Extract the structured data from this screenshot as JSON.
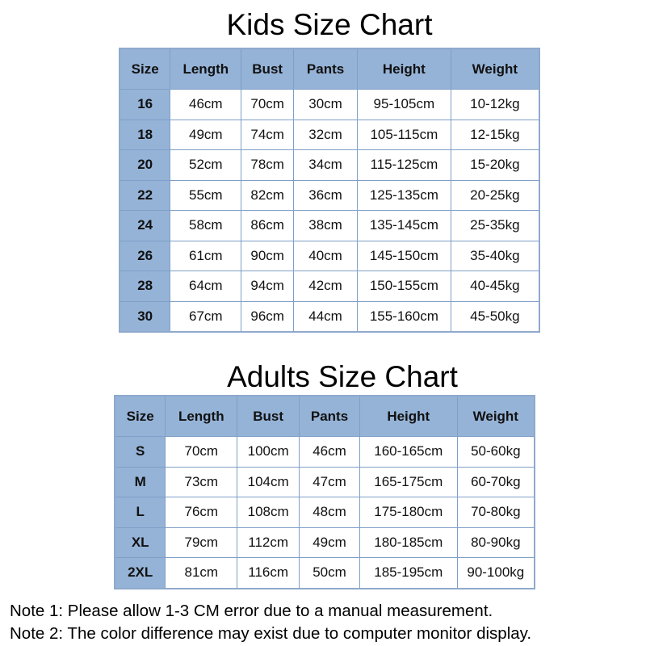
{
  "kids": {
    "title": "Kids Size Chart",
    "headers": [
      "Size",
      "Length",
      "Bust",
      "Pants",
      "Height",
      "Weight"
    ],
    "rows": [
      [
        "16",
        "46cm",
        "70cm",
        "30cm",
        "95-105cm",
        "10-12kg"
      ],
      [
        "18",
        "49cm",
        "74cm",
        "32cm",
        "105-115cm",
        "12-15kg"
      ],
      [
        "20",
        "52cm",
        "78cm",
        "34cm",
        "115-125cm",
        "15-20kg"
      ],
      [
        "22",
        "55cm",
        "82cm",
        "36cm",
        "125-135cm",
        "20-25kg"
      ],
      [
        "24",
        "58cm",
        "86cm",
        "38cm",
        "135-145cm",
        "25-35kg"
      ],
      [
        "26",
        "61cm",
        "90cm",
        "40cm",
        "145-150cm",
        "35-40kg"
      ],
      [
        "28",
        "64cm",
        "94cm",
        "42cm",
        "150-155cm",
        "40-45kg"
      ],
      [
        "30",
        "67cm",
        "96cm",
        "44cm",
        "155-160cm",
        "45-50kg"
      ]
    ]
  },
  "adults": {
    "title": "Adults Size Chart",
    "headers": [
      "Size",
      "Length",
      "Bust",
      "Pants",
      "Height",
      "Weight"
    ],
    "rows": [
      [
        "S",
        "70cm",
        "100cm",
        "46cm",
        "160-165cm",
        "50-60kg"
      ],
      [
        "M",
        "73cm",
        "104cm",
        "47cm",
        "165-175cm",
        "60-70kg"
      ],
      [
        "L",
        "76cm",
        "108cm",
        "48cm",
        "175-180cm",
        "70-80kg"
      ],
      [
        "XL",
        "79cm",
        "112cm",
        "49cm",
        "180-185cm",
        "80-90kg"
      ],
      [
        "2XL",
        "81cm",
        "116cm",
        "50cm",
        "185-195cm",
        "90-100kg"
      ]
    ]
  },
  "notes": [
    "Note 1: Please allow 1-3 CM error due to a manual measurement.",
    "Note 2: The color difference may exist due to computer monitor display."
  ],
  "colors": {
    "header_bg": "#95b3d7",
    "border": "#7f9fc8"
  }
}
